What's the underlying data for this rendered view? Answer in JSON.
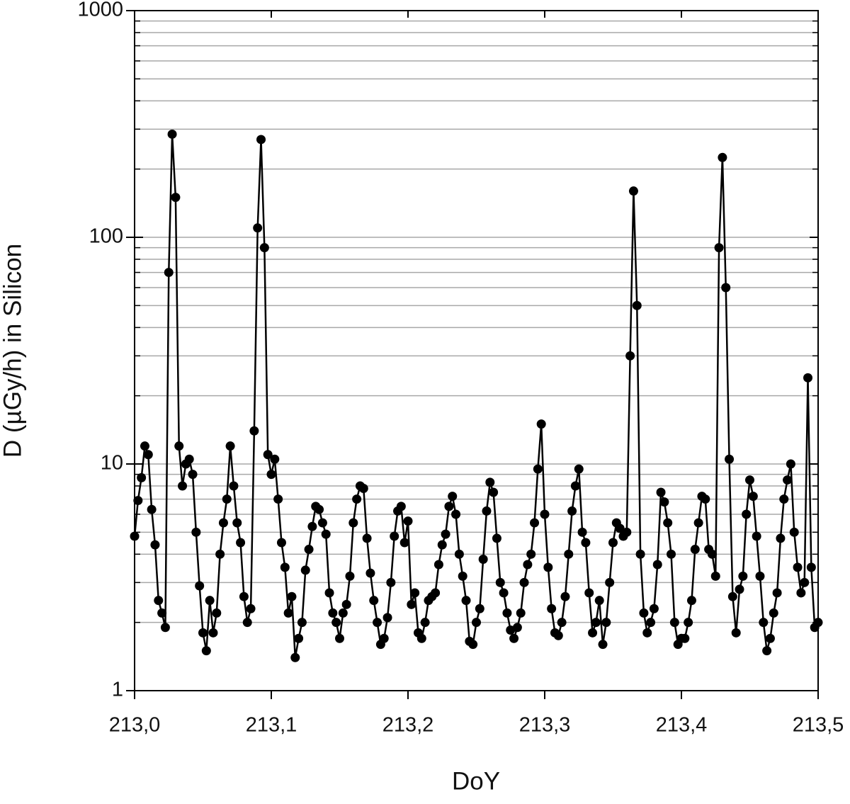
{
  "chart_data": {
    "type": "line",
    "x_label": "DoY",
    "y_label": "D (µGy/h) in Silicon",
    "log_y": true,
    "grid": true,
    "color": "#000000",
    "xlim": [
      213.0,
      213.5
    ],
    "xticks": [
      {
        "value": 213.0,
        "label": "213,0"
      },
      {
        "value": 213.1,
        "label": "213,1"
      },
      {
        "value": 213.2,
        "label": "213,2"
      },
      {
        "value": 213.3,
        "label": "213,3"
      },
      {
        "value": 213.4,
        "label": "213,4"
      },
      {
        "value": 213.5,
        "label": "213,5"
      }
    ],
    "ylim": [
      1,
      1000
    ],
    "yticks": [
      1,
      10,
      100,
      1000
    ],
    "x": [
      213.0,
      213.0025,
      213.005,
      213.0075,
      213.01,
      213.0125,
      213.015,
      213.0175,
      213.02,
      213.0225,
      213.025,
      213.0275,
      213.03,
      213.0325,
      213.035,
      213.0375,
      213.04,
      213.0425,
      213.045,
      213.0475,
      213.05,
      213.0525,
      213.055,
      213.0575,
      213.06,
      213.0625,
      213.065,
      213.0675,
      213.07,
      213.0725,
      213.075,
      213.0775,
      213.08,
      213.0825,
      213.085,
      213.0875,
      213.09,
      213.0925,
      213.095,
      213.0975,
      213.1,
      213.1025,
      213.105,
      213.1075,
      213.11,
      213.1125,
      213.115,
      213.1175,
      213.12,
      213.1225,
      213.125,
      213.1275,
      213.13,
      213.1325,
      213.135,
      213.1375,
      213.14,
      213.1425,
      213.145,
      213.1475,
      213.15,
      213.1525,
      213.155,
      213.1575,
      213.16,
      213.1625,
      213.165,
      213.1675,
      213.17,
      213.1725,
      213.175,
      213.1775,
      213.18,
      213.1825,
      213.185,
      213.1875,
      213.19,
      213.1925,
      213.195,
      213.1975,
      213.2,
      213.2025,
      213.205,
      213.2075,
      213.21,
      213.2125,
      213.215,
      213.2175,
      213.22,
      213.2225,
      213.225,
      213.2275,
      213.23,
      213.2325,
      213.235,
      213.2375,
      213.24,
      213.2425,
      213.245,
      213.2475,
      213.25,
      213.2525,
      213.255,
      213.2575,
      213.26,
      213.2625,
      213.265,
      213.2675,
      213.27,
      213.2725,
      213.275,
      213.2775,
      213.28,
      213.2825,
      213.285,
      213.2875,
      213.29,
      213.2925,
      213.295,
      213.2975,
      213.3,
      213.3025,
      213.305,
      213.3075,
      213.31,
      213.3125,
      213.315,
      213.3175,
      213.32,
      213.3225,
      213.325,
      213.3275,
      213.33,
      213.3325,
      213.335,
      213.3375,
      213.34,
      213.3425,
      213.345,
      213.3475,
      213.35,
      213.3525,
      213.355,
      213.3575,
      213.36,
      213.3625,
      213.365,
      213.3675,
      213.37,
      213.3725,
      213.375,
      213.3775,
      213.38,
      213.3825,
      213.385,
      213.3875,
      213.39,
      213.3925,
      213.395,
      213.3975,
      213.4,
      213.4025,
      213.405,
      213.4075,
      213.41,
      213.4125,
      213.415,
      213.4175,
      213.42,
      213.4225,
      213.425,
      213.4275,
      213.43,
      213.4325,
      213.435,
      213.4375,
      213.44,
      213.4425,
      213.445,
      213.4475,
      213.45,
      213.4525,
      213.455,
      213.4575,
      213.46,
      213.4625,
      213.465,
      213.4675,
      213.47,
      213.4725,
      213.475,
      213.4775,
      213.48,
      213.4825,
      213.485,
      213.4875,
      213.49,
      213.4925,
      213.495,
      213.4975,
      213.5
    ],
    "values": [
      4.8,
      6.9,
      8.7,
      12,
      11,
      6.3,
      4.4,
      2.5,
      2.2,
      1.9,
      70,
      285,
      150,
      12,
      8,
      10,
      10.5,
      9,
      5,
      2.9,
      1.8,
      1.5,
      2.5,
      1.8,
      2.2,
      4,
      5.5,
      7,
      12,
      8,
      5.5,
      4.5,
      2.6,
      2.0,
      2.3,
      14,
      110,
      270,
      90,
      11,
      9,
      10.5,
      7,
      4.5,
      3.5,
      2.2,
      2.6,
      1.4,
      1.7,
      2.0,
      3.4,
      4.2,
      5.3,
      6.5,
      6.3,
      5.5,
      4.9,
      2.7,
      2.2,
      2.0,
      1.7,
      2.2,
      2.4,
      3.2,
      5.5,
      7,
      8,
      7.8,
      4.7,
      3.3,
      2.5,
      2.0,
      1.6,
      1.7,
      2.1,
      3.0,
      4.8,
      6.2,
      6.5,
      4.5,
      5.6,
      2.4,
      2.7,
      1.8,
      1.7,
      2.0,
      2.5,
      2.6,
      2.7,
      3.6,
      4.4,
      4.9,
      6.5,
      7.2,
      6,
      4.0,
      3.2,
      2.5,
      1.65,
      1.6,
      2.0,
      2.3,
      3.8,
      6.2,
      8.3,
      7.5,
      4.7,
      3.0,
      2.7,
      2.2,
      1.85,
      1.7,
      1.9,
      2.2,
      3.0,
      3.6,
      4.0,
      5.5,
      9.5,
      15,
      6.0,
      3.5,
      2.3,
      1.8,
      1.75,
      2.0,
      2.6,
      4.0,
      6.2,
      8.0,
      9.5,
      5.0,
      4.5,
      2.7,
      1.8,
      2.0,
      2.5,
      1.6,
      2.0,
      3.0,
      4.5,
      5.5,
      5.2,
      4.8,
      5.0,
      30,
      160,
      50,
      4.0,
      2.2,
      1.8,
      2.0,
      2.3,
      3.6,
      7.5,
      6.8,
      5.5,
      4.0,
      2.0,
      1.6,
      1.7,
      1.7,
      2.0,
      2.5,
      4.2,
      5.5,
      7.2,
      7.0,
      4.2,
      4.0,
      3.2,
      90,
      225,
      60,
      10.5,
      2.6,
      1.8,
      2.8,
      3.2,
      6.0,
      8.5,
      7.2,
      4.8,
      3.2,
      2.0,
      1.5,
      1.7,
      2.2,
      2.7,
      4.7,
      7.0,
      8.5,
      10,
      5.0,
      3.5,
      2.7,
      3.0,
      24,
      3.5,
      1.9,
      2.0
    ]
  }
}
